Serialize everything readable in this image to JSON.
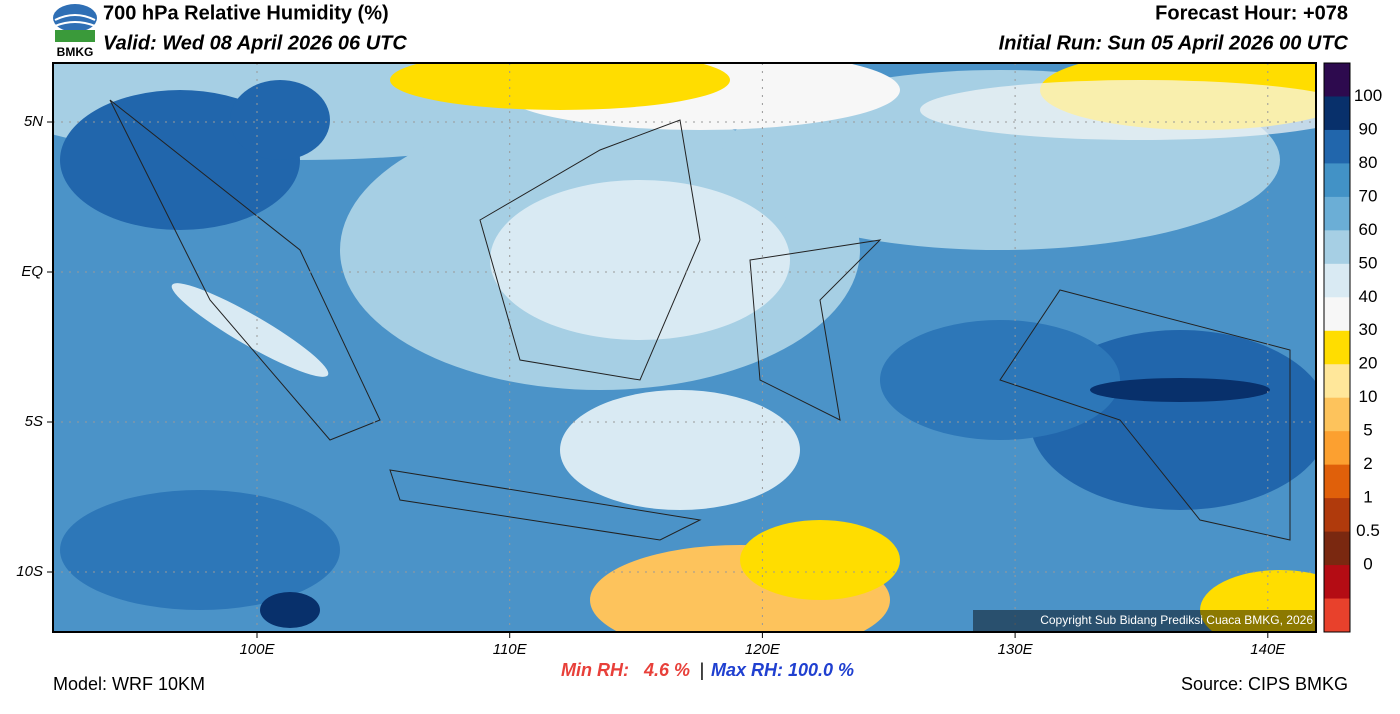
{
  "header": {
    "title": "700 hPa Relative Humidity (%)",
    "valid": "Valid: Wed 08 April 2026 06 UTC",
    "forecast_hour": "Forecast Hour: +078",
    "initial_run": "Initial Run: Sun 05 April 2026 00 UTC",
    "logo_text": "BMKG"
  },
  "map": {
    "x_labels": [
      "100E",
      "110E",
      "120E",
      "130E",
      "140E"
    ],
    "y_labels": [
      "5N",
      "EQ",
      "5S",
      "10S"
    ],
    "copyright": "Copyright Sub Bidang Prediksi Cuaca BMKG, 2026"
  },
  "colorbar": {
    "labels": [
      "100",
      "90",
      "80",
      "70",
      "60",
      "50",
      "40",
      "30",
      "20",
      "10",
      "5",
      "2",
      "1",
      "0.5",
      "0"
    ],
    "colors": [
      "#2d0a4e",
      "#08306b",
      "#2166ac",
      "#4292c6",
      "#6baed6",
      "#a6cfe4",
      "#d9eaf3",
      "#f7f7f7",
      "#ffdd00",
      "#ffe79a",
      "#fdc35c",
      "#fca030",
      "#e0600a",
      "#b03a0c",
      "#7a2810",
      "#b40c14",
      "#e8412c"
    ]
  },
  "footer": {
    "min_rh": "Min RH:   4.6 %",
    "separator": "|",
    "max_rh": "Max RH: 100.0 %",
    "model": "Model: WRF 10KM",
    "source": "Source: CIPS BMKG"
  }
}
